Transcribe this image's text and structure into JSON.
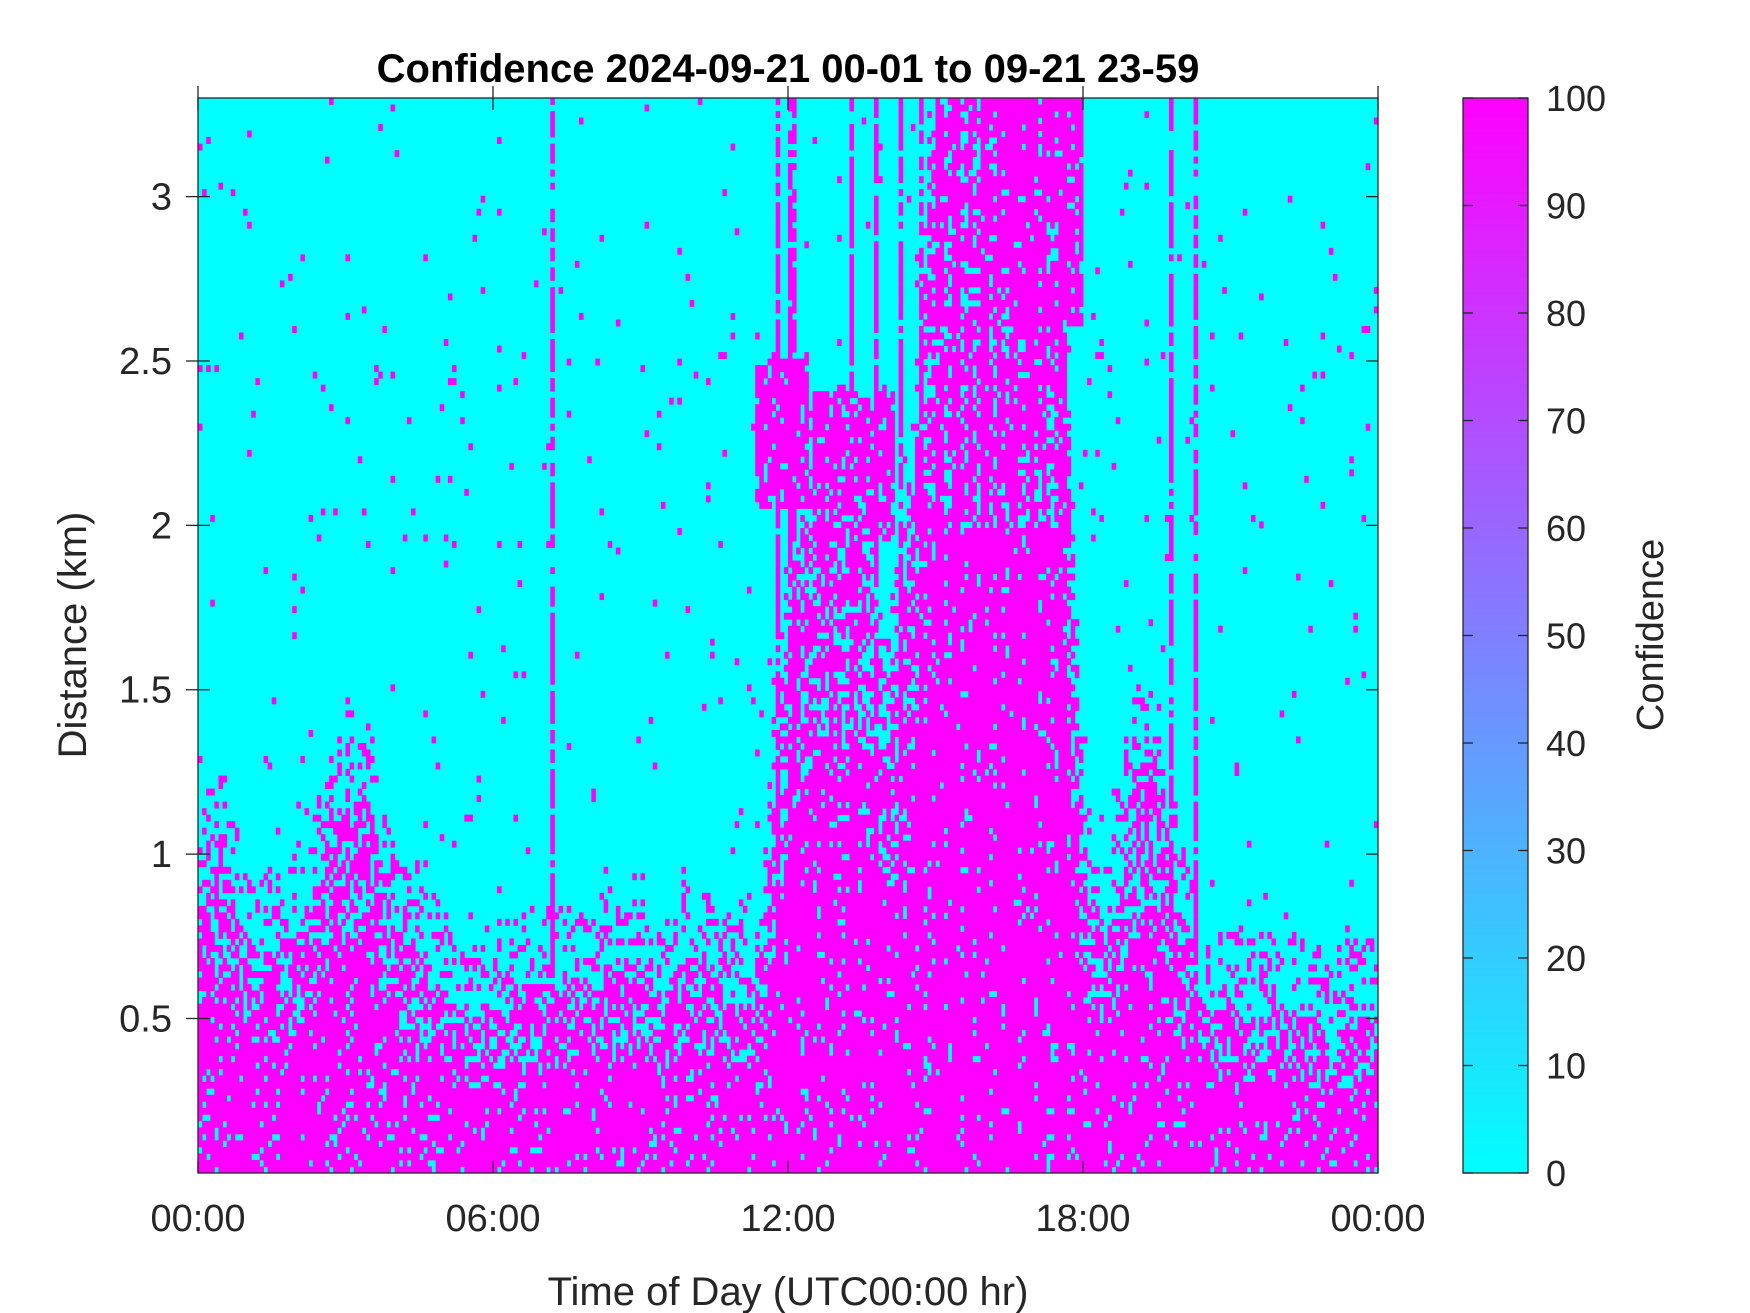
{
  "chart_data": {
    "type": "heatmap",
    "title": "Confidence 2024-09-21 00-01 to 09-21 23-59",
    "xlabel": "Time of Day (UTC00:00 hr)",
    "ylabel": "Distance (km)",
    "xlim": [
      0,
      24
    ],
    "ylim": [
      0.03,
      3.3
    ],
    "x_ticks": [
      0,
      6,
      12,
      18,
      24
    ],
    "x_tick_labels": [
      "00:00",
      "06:00",
      "12:00",
      "18:00",
      "00:00"
    ],
    "y_ticks": [
      0.5,
      1,
      1.5,
      2,
      2.5,
      3
    ],
    "y_tick_labels": [
      "0.5",
      "1",
      "1.5",
      "2",
      "2.5",
      "3"
    ],
    "colorbar": {
      "label": "Confidence",
      "range": [
        0,
        100
      ],
      "ticks": [
        0,
        10,
        20,
        30,
        40,
        50,
        60,
        70,
        80,
        90,
        100
      ],
      "tick_labels": [
        "0",
        "10",
        "20",
        "30",
        "40",
        "50",
        "60",
        "70",
        "80",
        "90",
        "100"
      ],
      "color_low": "#00FFFF",
      "color_high": "#FF00FF"
    },
    "grid": "off",
    "value_levels": [
      0,
      100
    ],
    "high_confidence_top_km": [
      [
        0.0,
        0.9
      ],
      [
        0.5,
        1.0
      ],
      [
        1.0,
        0.7
      ],
      [
        1.5,
        0.7
      ],
      [
        2.0,
        0.75
      ],
      [
        2.5,
        0.95
      ],
      [
        3.0,
        1.2
      ],
      [
        3.5,
        1.15
      ],
      [
        4.0,
        0.75
      ],
      [
        4.5,
        0.7
      ],
      [
        5.0,
        0.6
      ],
      [
        5.5,
        0.45
      ],
      [
        6.0,
        0.55
      ],
      [
        6.5,
        0.6
      ],
      [
        7.0,
        0.6
      ],
      [
        7.5,
        0.62
      ],
      [
        8.0,
        0.62
      ],
      [
        8.5,
        0.65
      ],
      [
        9.0,
        0.7
      ],
      [
        9.5,
        0.55
      ],
      [
        10.0,
        0.7
      ],
      [
        10.5,
        0.6
      ],
      [
        11.0,
        0.55
      ],
      [
        11.5,
        0.75
      ],
      [
        12.0,
        1.7
      ],
      [
        12.5,
        2.15
      ],
      [
        13.0,
        2.2
      ],
      [
        13.5,
        2.2
      ],
      [
        14.0,
        1.4
      ],
      [
        14.5,
        2.0
      ],
      [
        15.0,
        3.3
      ],
      [
        15.5,
        3.3
      ],
      [
        16.0,
        3.3
      ],
      [
        16.5,
        3.3
      ],
      [
        17.0,
        3.3
      ],
      [
        17.5,
        3.3
      ],
      [
        18.0,
        0.9
      ],
      [
        18.5,
        0.7
      ],
      [
        19.0,
        1.25
      ],
      [
        19.5,
        1.3
      ],
      [
        20.0,
        0.8
      ],
      [
        20.5,
        0.5
      ],
      [
        21.0,
        0.55
      ],
      [
        21.5,
        0.5
      ],
      [
        22.0,
        0.55
      ],
      [
        22.5,
        0.5
      ],
      [
        23.0,
        0.45
      ],
      [
        23.5,
        0.5
      ],
      [
        24.0,
        0.5
      ]
    ],
    "upper_patches": [
      {
        "x": [
          11.3,
          12.4
        ],
        "y": [
          2.05,
          2.5
        ]
      },
      {
        "x": [
          12.5,
          14.2
        ],
        "y": [
          1.95,
          2.4
        ]
      },
      {
        "x": [
          16.2,
          18.0
        ],
        "y": [
          2.6,
          3.3
        ]
      }
    ],
    "vertical_streaks_hours": [
      7.2,
      11.8,
      12.1,
      13.3,
      13.8,
      14.3,
      14.7,
      15.1,
      15.4,
      15.7,
      16.0,
      16.3,
      16.6,
      16.9,
      17.2,
      17.6,
      19.8,
      20.3
    ]
  }
}
